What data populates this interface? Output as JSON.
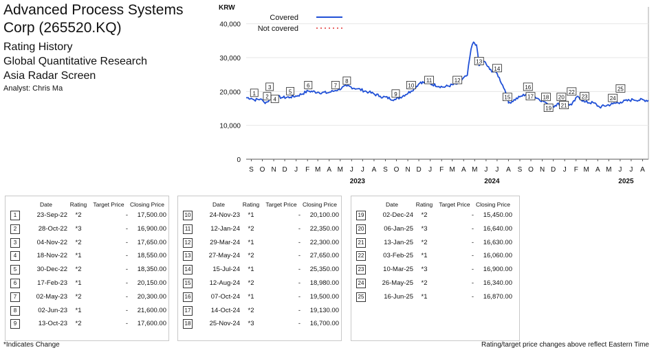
{
  "header": {
    "company": "Advanced Process Systems Corp (265520.KQ)",
    "line1": "Rating History",
    "line2": "Global Quantitative Research",
    "line3": "Asia Radar Screen",
    "analyst": "Analyst: Chris Ma"
  },
  "chart_data": {
    "type": "line",
    "ylabel": "KRW",
    "yticks": [
      "0",
      "10,000",
      "20,000",
      "30,000",
      "40,000"
    ],
    "ylim": [
      0,
      45000
    ],
    "xlim": [
      "2022-09-01",
      "2025-08-31"
    ],
    "month_labels": [
      "S",
      "O",
      "N",
      "D",
      "J",
      "F",
      "M",
      "A",
      "M",
      "J",
      "J",
      "A",
      "S",
      "O",
      "N",
      "D",
      "J",
      "F",
      "M",
      "A",
      "M",
      "J",
      "J",
      "A",
      "S",
      "O",
      "N",
      "D",
      "J",
      "F",
      "M",
      "A",
      "M",
      "J",
      "J",
      "A"
    ],
    "year_labels": [
      "2023",
      "2024",
      "2025"
    ],
    "legend": [
      {
        "label": "Covered",
        "color": "#1f4fd6",
        "style": "solid"
      },
      {
        "label": "Not covered",
        "color": "#e03131",
        "style": "dotted"
      }
    ],
    "legend_position": "top-left",
    "grid": "horizontal",
    "series": [
      {
        "name": "Covered",
        "color": "#1f4fd6",
        "points": [
          [
            "2022-09-01",
            18200
          ],
          [
            "2022-09-15",
            18000
          ],
          [
            "2022-09-23",
            17500
          ],
          [
            "2022-10-10",
            17800
          ],
          [
            "2022-10-20",
            16800
          ],
          [
            "2022-10-28",
            16900
          ],
          [
            "2022-11-04",
            17650
          ],
          [
            "2022-11-18",
            18550
          ],
          [
            "2022-12-10",
            18200
          ],
          [
            "2022-12-30",
            18350
          ],
          [
            "2023-01-20",
            18800
          ],
          [
            "2023-02-17",
            20150
          ],
          [
            "2023-03-15",
            19800
          ],
          [
            "2023-04-10",
            19600
          ],
          [
            "2023-05-02",
            20300
          ],
          [
            "2023-06-02",
            21600
          ],
          [
            "2023-07-01",
            20800
          ],
          [
            "2023-08-01",
            19800
          ],
          [
            "2023-09-01",
            18600
          ],
          [
            "2023-10-13",
            17600
          ],
          [
            "2023-11-24",
            20100
          ],
          [
            "2023-12-20",
            22800
          ],
          [
            "2024-01-12",
            22350
          ],
          [
            "2024-02-20",
            21300
          ],
          [
            "2024-03-29",
            22300
          ],
          [
            "2024-04-25",
            24800
          ],
          [
            "2024-05-05",
            32500
          ],
          [
            "2024-05-12",
            34600
          ],
          [
            "2024-05-20",
            33800
          ],
          [
            "2024-05-27",
            27650
          ],
          [
            "2024-06-10",
            28900
          ],
          [
            "2024-06-25",
            26500
          ],
          [
            "2024-07-15",
            25350
          ],
          [
            "2024-08-05",
            20500
          ],
          [
            "2024-08-12",
            18980
          ],
          [
            "2024-08-15",
            16600
          ],
          [
            "2024-09-15",
            18400
          ],
          [
            "2024-10-07",
            19500
          ],
          [
            "2024-10-14",
            19130
          ],
          [
            "2024-11-25",
            16700
          ],
          [
            "2024-12-02",
            15450
          ],
          [
            "2024-12-20",
            15900
          ],
          [
            "2025-01-06",
            16640
          ],
          [
            "2025-01-13",
            16630
          ],
          [
            "2025-02-03",
            16060
          ],
          [
            "2025-02-20",
            18600
          ],
          [
            "2025-03-10",
            16900
          ],
          [
            "2025-04-05",
            16600
          ],
          [
            "2025-04-20",
            15400
          ],
          [
            "2025-05-26",
            16340
          ],
          [
            "2025-06-16",
            16870
          ],
          [
            "2025-07-20",
            17600
          ],
          [
            "2025-08-31",
            17400
          ]
        ]
      }
    ],
    "markers": [
      {
        "n": "1",
        "date": "2022-09-23",
        "label_value": 19500
      },
      {
        "n": "2",
        "date": "2022-10-28",
        "label_value": 18500
      },
      {
        "n": "3",
        "date": "2022-11-04",
        "label_value": 21300
      },
      {
        "n": "4",
        "date": "2022-11-18",
        "label_value": 17700
      },
      {
        "n": "5",
        "date": "2022-12-30",
        "label_value": 20000
      },
      {
        "n": "6",
        "date": "2023-02-17",
        "label_value": 21800
      },
      {
        "n": "7",
        "date": "2023-05-02",
        "label_value": 21800
      },
      {
        "n": "8",
        "date": "2023-06-02",
        "label_value": 23100
      },
      {
        "n": "9",
        "date": "2023-10-13",
        "label_value": 19300
      },
      {
        "n": "10",
        "date": "2023-11-24",
        "label_value": 21800
      },
      {
        "n": "11",
        "date": "2024-01-12",
        "label_value": 23300
      },
      {
        "n": "12",
        "date": "2024-03-29",
        "label_value": 23300
      },
      {
        "n": "13",
        "date": "2024-05-27",
        "label_value": 28900
      },
      {
        "n": "14",
        "date": "2024-07-15",
        "label_value": 26800
      },
      {
        "n": "15",
        "date": "2024-08-12",
        "label_value": 18300
      },
      {
        "n": "16",
        "date": "2024-10-07",
        "label_value": 21300
      },
      {
        "n": "17",
        "date": "2024-10-14",
        "label_value": 18500
      },
      {
        "n": "18",
        "date": "2024-11-25",
        "label_value": 18300
      },
      {
        "n": "19",
        "date": "2024-12-02",
        "label_value": 15100
      },
      {
        "n": "20",
        "date": "2025-01-06",
        "label_value": 18300
      },
      {
        "n": "21",
        "date": "2025-01-13",
        "label_value": 15900
      },
      {
        "n": "22",
        "date": "2025-02-03",
        "label_value": 19900
      },
      {
        "n": "23",
        "date": "2025-03-10",
        "label_value": 18500
      },
      {
        "n": "24",
        "date": "2025-05-26",
        "label_value": 18000
      },
      {
        "n": "25",
        "date": "2025-06-16",
        "label_value": 20800
      }
    ]
  },
  "table_headers": {
    "date": "Date",
    "rating": "Rating",
    "target": "Target Price",
    "close": "Closing Price"
  },
  "tables": [
    [
      {
        "n": "1",
        "date": "23-Sep-22",
        "rating": "*2",
        "target": "-",
        "close": "17,500.00"
      },
      {
        "n": "2",
        "date": "28-Oct-22",
        "rating": "*3",
        "target": "-",
        "close": "16,900.00"
      },
      {
        "n": "3",
        "date": "04-Nov-22",
        "rating": "*2",
        "target": "-",
        "close": "17,650.00"
      },
      {
        "n": "4",
        "date": "18-Nov-22",
        "rating": "*1",
        "target": "-",
        "close": "18,550.00"
      },
      {
        "n": "5",
        "date": "30-Dec-22",
        "rating": "*2",
        "target": "-",
        "close": "18,350.00"
      },
      {
        "n": "6",
        "date": "17-Feb-23",
        "rating": "*1",
        "target": "-",
        "close": "20,150.00"
      },
      {
        "n": "7",
        "date": "02-May-23",
        "rating": "*2",
        "target": "-",
        "close": "20,300.00"
      },
      {
        "n": "8",
        "date": "02-Jun-23",
        "rating": "*1",
        "target": "-",
        "close": "21,600.00"
      },
      {
        "n": "9",
        "date": "13-Oct-23",
        "rating": "*2",
        "target": "-",
        "close": "17,600.00"
      }
    ],
    [
      {
        "n": "10",
        "date": "24-Nov-23",
        "rating": "*1",
        "target": "-",
        "close": "20,100.00"
      },
      {
        "n": "11",
        "date": "12-Jan-24",
        "rating": "*2",
        "target": "-",
        "close": "22,350.00"
      },
      {
        "n": "12",
        "date": "29-Mar-24",
        "rating": "*1",
        "target": "-",
        "close": "22,300.00"
      },
      {
        "n": "13",
        "date": "27-May-24",
        "rating": "*2",
        "target": "-",
        "close": "27,650.00"
      },
      {
        "n": "14",
        "date": "15-Jul-24",
        "rating": "*1",
        "target": "-",
        "close": "25,350.00"
      },
      {
        "n": "15",
        "date": "12-Aug-24",
        "rating": "*2",
        "target": "-",
        "close": "18,980.00"
      },
      {
        "n": "16",
        "date": "07-Oct-24",
        "rating": "*1",
        "target": "-",
        "close": "19,500.00"
      },
      {
        "n": "17",
        "date": "14-Oct-24",
        "rating": "*2",
        "target": "-",
        "close": "19,130.00"
      },
      {
        "n": "18",
        "date": "25-Nov-24",
        "rating": "*3",
        "target": "-",
        "close": "16,700.00"
      }
    ],
    [
      {
        "n": "19",
        "date": "02-Dec-24",
        "rating": "*2",
        "target": "-",
        "close": "15,450.00"
      },
      {
        "n": "20",
        "date": "06-Jan-25",
        "rating": "*3",
        "target": "-",
        "close": "16,640.00"
      },
      {
        "n": "21",
        "date": "13-Jan-25",
        "rating": "*2",
        "target": "-",
        "close": "16,630.00"
      },
      {
        "n": "22",
        "date": "03-Feb-25",
        "rating": "*1",
        "target": "-",
        "close": "16,060.00"
      },
      {
        "n": "23",
        "date": "10-Mar-25",
        "rating": "*3",
        "target": "-",
        "close": "16,900.00"
      },
      {
        "n": "24",
        "date": "26-May-25",
        "rating": "*2",
        "target": "-",
        "close": "16,340.00"
      },
      {
        "n": "25",
        "date": "16-Jun-25",
        "rating": "*1",
        "target": "-",
        "close": "16,870.00"
      }
    ]
  ],
  "footer": {
    "left": "*Indicates Change",
    "right": "Rating/target price changes above reflect Eastern Time"
  }
}
